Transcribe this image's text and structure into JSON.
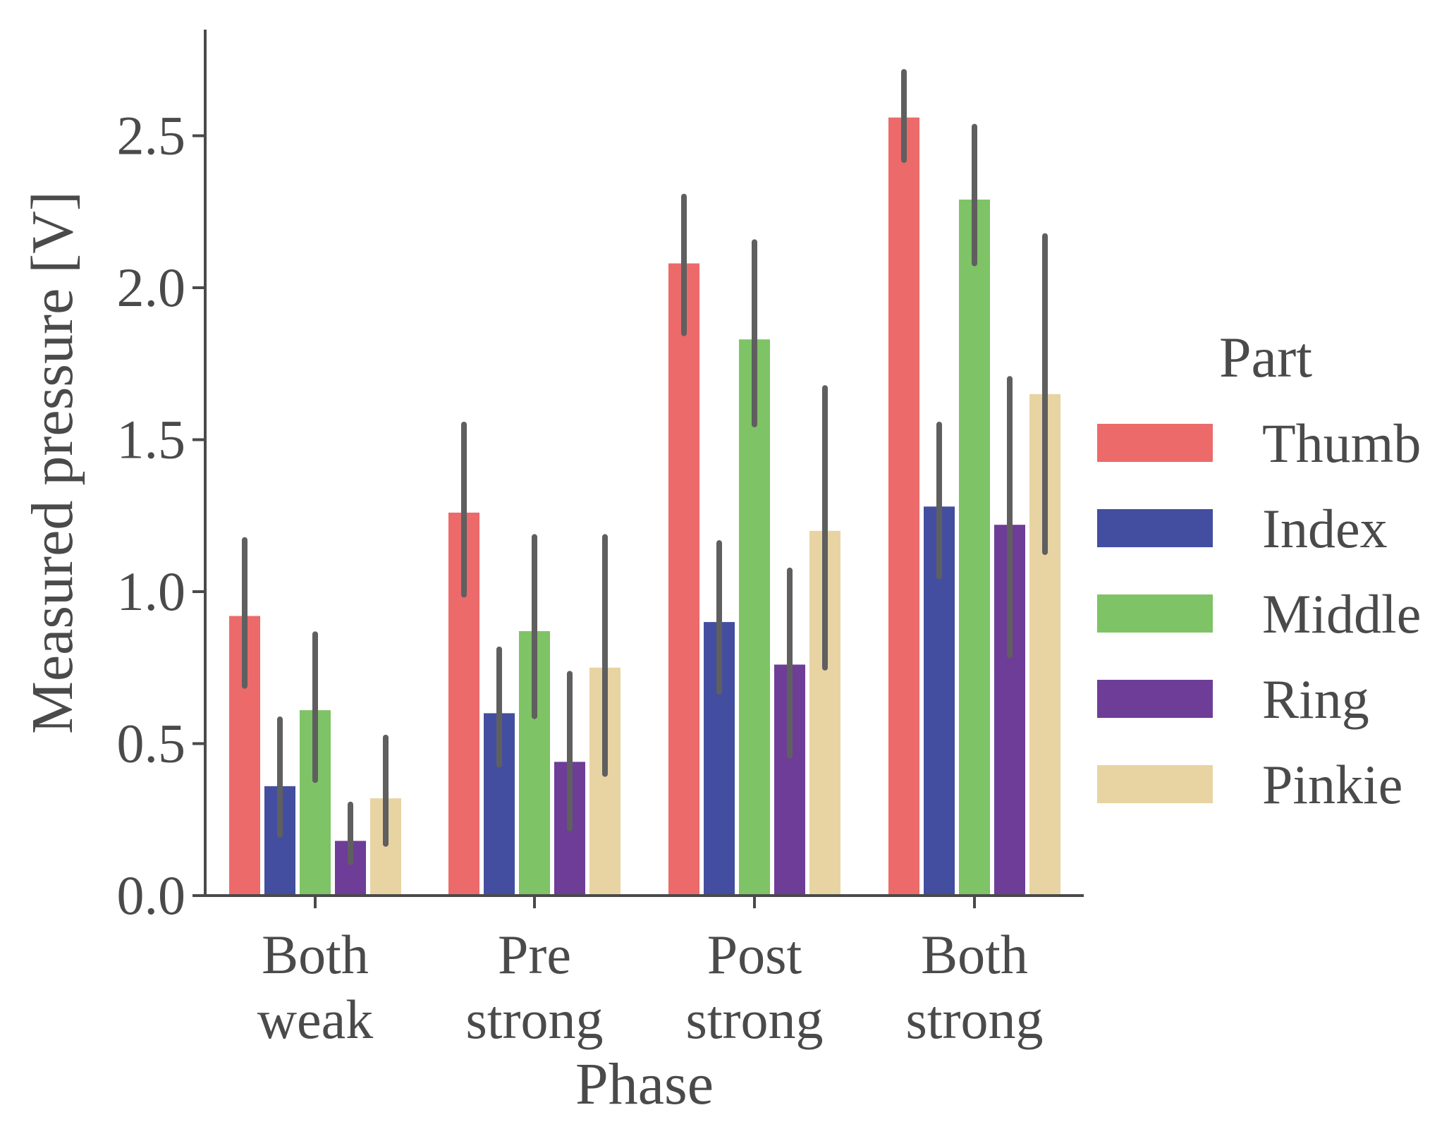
{
  "chart_data": {
    "type": "bar",
    "xlabel": "Phase",
    "ylabel": "Measured pressure [V]",
    "ylim": [
      0,
      2.85
    ],
    "yticks": [
      0.0,
      0.5,
      1.0,
      1.5,
      2.0,
      2.5
    ],
    "ytick_labels": [
      "0.0",
      "0.5",
      "1.0",
      "1.5",
      "2.0",
      "2.5"
    ],
    "categories": [
      {
        "lines": [
          "Both",
          "weak"
        ]
      },
      {
        "lines": [
          "Pre",
          "strong"
        ]
      },
      {
        "lines": [
          "Post",
          "strong"
        ]
      },
      {
        "lines": [
          "Both",
          "strong"
        ]
      }
    ],
    "legend": {
      "title": "Part",
      "placement": "center-right"
    },
    "errorbar_color": "#5f5f5f",
    "axis_color": "#4a4a4a",
    "series": [
      {
        "name": "Thumb",
        "color": "#ec6a6a",
        "values": [
          0.92,
          1.26,
          2.08,
          2.56
        ],
        "err_low": [
          0.69,
          0.99,
          1.85,
          2.42
        ],
        "err_high": [
          1.17,
          1.55,
          2.3,
          2.71
        ]
      },
      {
        "name": "Index",
        "color": "#434ea0",
        "values": [
          0.36,
          0.6,
          0.9,
          1.28
        ],
        "err_low": [
          0.2,
          0.43,
          0.67,
          1.05
        ],
        "err_high": [
          0.58,
          0.81,
          1.16,
          1.55
        ]
      },
      {
        "name": "Middle",
        "color": "#7ec365",
        "values": [
          0.61,
          0.87,
          1.83,
          2.29
        ],
        "err_low": [
          0.38,
          0.59,
          1.55,
          2.08
        ],
        "err_high": [
          0.86,
          1.18,
          2.15,
          2.53
        ]
      },
      {
        "name": "Ring",
        "color": "#6e3d97",
        "values": [
          0.18,
          0.44,
          0.76,
          1.22
        ],
        "err_low": [
          0.11,
          0.22,
          0.46,
          0.79
        ],
        "err_high": [
          0.3,
          0.73,
          1.07,
          1.7
        ]
      },
      {
        "name": "Pinkie",
        "color": "#e8d3a3",
        "values": [
          0.32,
          0.75,
          1.2,
          1.65
        ],
        "err_low": [
          0.17,
          0.4,
          0.75,
          1.13
        ],
        "err_high": [
          0.52,
          1.18,
          1.67,
          2.17
        ]
      }
    ]
  }
}
